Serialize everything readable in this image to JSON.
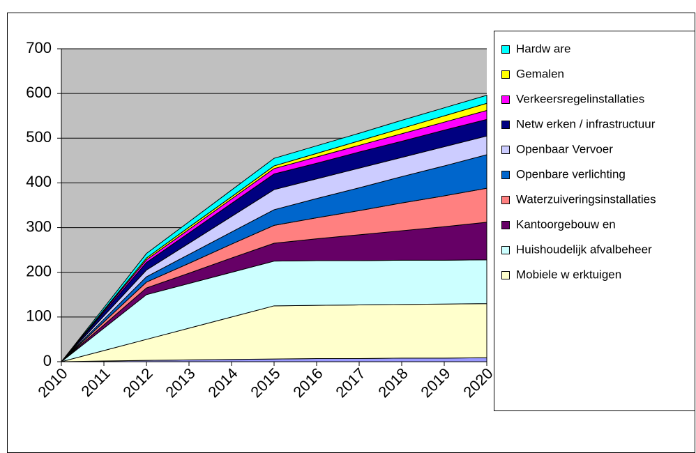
{
  "chart_data": {
    "type": "stacked_area",
    "categories": [
      "2010",
      "2011",
      "2012",
      "2013",
      "2014",
      "2015",
      "2016",
      "2017",
      "2018",
      "2019",
      "2020"
    ],
    "ylim": [
      0,
      700
    ],
    "yticks": [
      0,
      100,
      200,
      300,
      400,
      500,
      600,
      700
    ],
    "grid": true,
    "legend": "right",
    "series": [
      {
        "name": null,
        "color": "#9999ff",
        "values": [
          0,
          1.5,
          3,
          4,
          5,
          6,
          7,
          7,
          8,
          8,
          9
        ]
      },
      {
        "name": "Mobiele w erktuigen",
        "color": "#ffffcc",
        "values": [
          0,
          23.5,
          47,
          71,
          95,
          119,
          119,
          120,
          120,
          121,
          121
        ]
      },
      {
        "name": "Huishoudelijk afvalbeheer",
        "color": "#ccffff",
        "values": [
          0,
          50,
          100,
          100,
          100,
          100,
          100,
          99,
          99,
          98,
          98
        ]
      },
      {
        "name": "Kantoorgebouw en",
        "color": "#660066",
        "values": [
          0,
          7.5,
          15,
          23,
          32,
          40,
          49,
          58,
          66,
          75,
          84
        ]
      },
      {
        "name": "Waterzuiveringsinstallaties",
        "color": "#ff8080",
        "values": [
          0,
          6.5,
          13,
          22,
          31,
          40,
          47,
          54,
          62,
          69,
          76
        ]
      },
      {
        "name": "Openbare verlichting",
        "color": "#0066cc",
        "values": [
          0,
          6,
          12,
          20,
          27,
          35,
          43,
          51,
          59,
          67,
          75
        ]
      },
      {
        "name": "Openbaar Vervoer",
        "color": "#ccccff",
        "values": [
          0,
          7.5,
          15,
          25,
          35,
          45,
          44,
          44,
          43,
          43,
          42
        ]
      },
      {
        "name": "Netw erken / infrastructuur",
        "color": "#000080",
        "values": [
          0,
          8.5,
          17,
          23,
          29,
          35,
          35,
          36,
          36,
          37,
          37
        ]
      },
      {
        "name": "Verkeersregelinstallaties",
        "color": "#ff00ff",
        "values": [
          0,
          3,
          6,
          8,
          10,
          12,
          14,
          15,
          17,
          18,
          20
        ]
      },
      {
        "name": "Gemalen",
        "color": "#ffff00",
        "values": [
          0,
          2,
          4,
          5,
          5,
          6,
          8,
          10,
          12,
          14,
          16
        ]
      },
      {
        "name": "Hardw are",
        "color": "#00ffff",
        "values": [
          0,
          5,
          10,
          12,
          15,
          17,
          17,
          17,
          18,
          18,
          18
        ]
      }
    ]
  }
}
